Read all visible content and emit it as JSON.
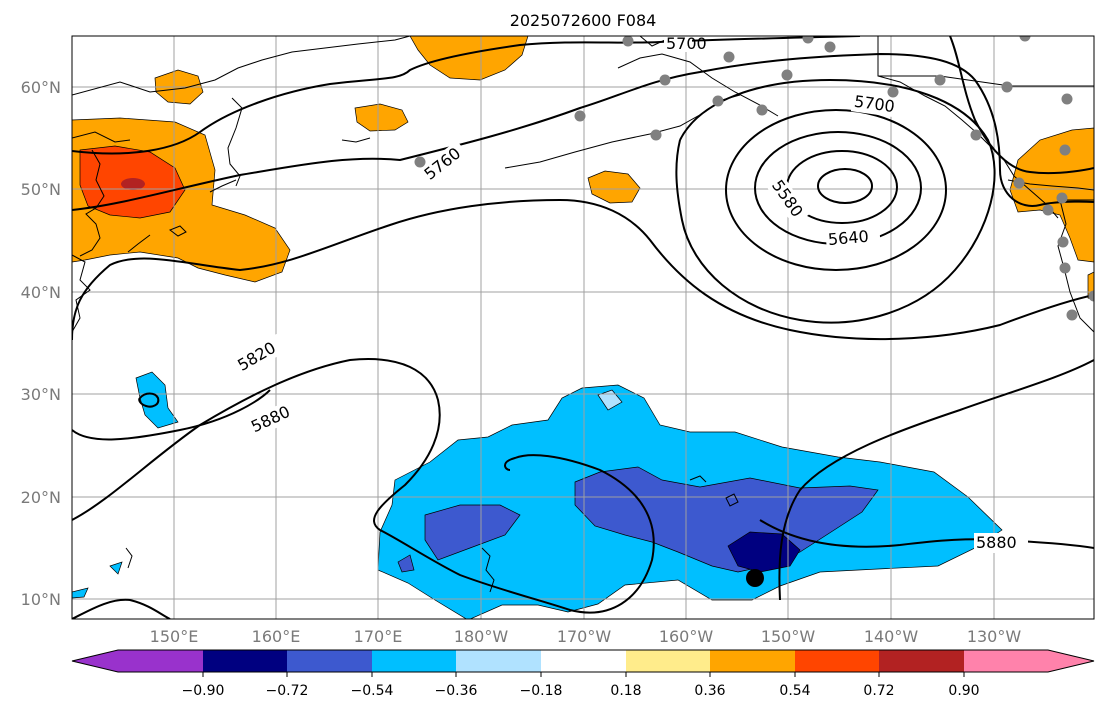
{
  "title": "2025072600 F084",
  "lat_ticks": [
    "60°N",
    "50°N",
    "40°N",
    "30°N",
    "20°N",
    "10°N"
  ],
  "lon_ticks": [
    "150°E",
    "160°E",
    "170°E",
    "180°W",
    "170°W",
    "160°W",
    "150°W",
    "140°W",
    "130°W"
  ],
  "contour_labels": [
    "5700",
    "5700",
    "5760",
    "5580",
    "5640",
    "5820",
    "5880",
    "5880"
  ],
  "colorbar": {
    "colors": [
      "#9932cc",
      "#000080",
      "#3d59cf",
      "#00bfff",
      "#b0e2ff",
      "#ffffff",
      "#ffec8b",
      "#ffa500",
      "#ff4500",
      "#b22222",
      "#ff82ab"
    ],
    "tick_labels": [
      "−0.90",
      "−0.72",
      "−0.54",
      "−0.36",
      "−0.18",
      "0.18",
      "0.36",
      "0.54",
      "0.72",
      "0.90"
    ]
  }
}
